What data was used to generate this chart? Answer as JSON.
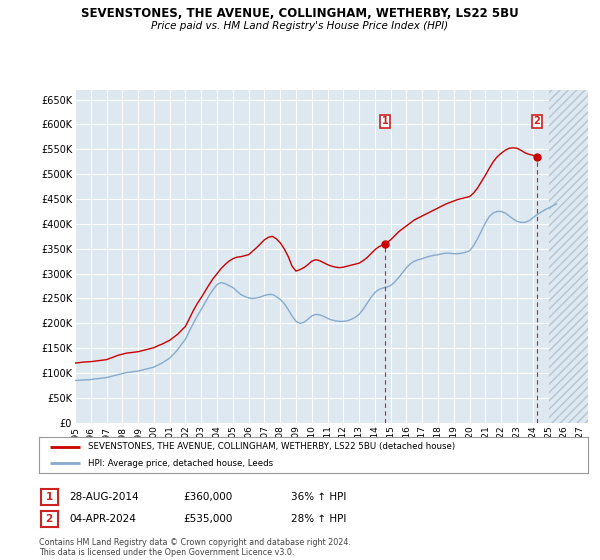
{
  "title": "SEVENSTONES, THE AVENUE, COLLINGHAM, WETHERBY, LS22 5BU",
  "subtitle": "Price paid vs. HM Land Registry's House Price Index (HPI)",
  "ylabel_ticks": [
    "£0",
    "£50K",
    "£100K",
    "£150K",
    "£200K",
    "£250K",
    "£300K",
    "£350K",
    "£400K",
    "£450K",
    "£500K",
    "£550K",
    "£600K",
    "£650K"
  ],
  "ytick_values": [
    0,
    50000,
    100000,
    150000,
    200000,
    250000,
    300000,
    350000,
    400000,
    450000,
    500000,
    550000,
    600000,
    650000
  ],
  "ylim": [
    0,
    670000
  ],
  "xlim_start": 1995.0,
  "xlim_end": 2027.5,
  "xtick_years": [
    1995,
    1996,
    1997,
    1998,
    1999,
    2000,
    2001,
    2002,
    2003,
    2004,
    2005,
    2006,
    2007,
    2008,
    2009,
    2010,
    2011,
    2012,
    2013,
    2014,
    2015,
    2016,
    2017,
    2018,
    2019,
    2020,
    2021,
    2022,
    2023,
    2024,
    2025,
    2026,
    2027
  ],
  "red_line_color": "#cc0000",
  "blue_line_color": "#88aacc",
  "background_color": "#ffffff",
  "plot_bg_color": "#dde8f0",
  "grid_color": "#ffffff",
  "hatch_color": "#c8d4e0",
  "marker_box_color": "#cc2222",
  "dashed_line_color": "#cc2222",
  "marker1_x": 2014.66,
  "marker1_y": 360000,
  "marker2_x": 2024.27,
  "marker2_y": 535000,
  "annotation1": [
    "1",
    "28-AUG-2014",
    "£360,000",
    "36% ↑ HPI"
  ],
  "annotation2": [
    "2",
    "04-APR-2024",
    "£535,000",
    "28% ↑ HPI"
  ],
  "legend_line1": "SEVENSTONES, THE AVENUE, COLLINGHAM, WETHERBY, LS22 5BU (detached house)",
  "legend_line2": "HPI: Average price, detached house, Leeds",
  "footnote": "Contains HM Land Registry data © Crown copyright and database right 2024.\nThis data is licensed under the Open Government Licence v3.0.",
  "hatch_start_x": 2025.0,
  "red_hpi_data": [
    [
      1995.0,
      120000
    ],
    [
      1995.25,
      121000
    ],
    [
      1995.5,
      122000
    ],
    [
      1995.75,
      122500
    ],
    [
      1996.0,
      123000
    ],
    [
      1996.25,
      124000
    ],
    [
      1996.5,
      125000
    ],
    [
      1996.75,
      126000
    ],
    [
      1997.0,
      127000
    ],
    [
      1997.25,
      130000
    ],
    [
      1997.5,
      133000
    ],
    [
      1997.75,
      136000
    ],
    [
      1998.0,
      138000
    ],
    [
      1998.25,
      140000
    ],
    [
      1998.5,
      141000
    ],
    [
      1998.75,
      142000
    ],
    [
      1999.0,
      143000
    ],
    [
      1999.25,
      145000
    ],
    [
      1999.5,
      147000
    ],
    [
      1999.75,
      149000
    ],
    [
      2000.0,
      151000
    ],
    [
      2000.25,
      155000
    ],
    [
      2000.5,
      158000
    ],
    [
      2000.75,
      162000
    ],
    [
      2001.0,
      166000
    ],
    [
      2001.25,
      172000
    ],
    [
      2001.5,
      178000
    ],
    [
      2001.75,
      186000
    ],
    [
      2002.0,
      194000
    ],
    [
      2002.25,
      210000
    ],
    [
      2002.5,
      226000
    ],
    [
      2002.75,
      240000
    ],
    [
      2003.0,
      252000
    ],
    [
      2003.25,
      265000
    ],
    [
      2003.5,
      278000
    ],
    [
      2003.75,
      290000
    ],
    [
      2004.0,
      300000
    ],
    [
      2004.25,
      310000
    ],
    [
      2004.5,
      318000
    ],
    [
      2004.75,
      325000
    ],
    [
      2005.0,
      330000
    ],
    [
      2005.25,
      333000
    ],
    [
      2005.5,
      334000
    ],
    [
      2005.75,
      336000
    ],
    [
      2006.0,
      338000
    ],
    [
      2006.25,
      345000
    ],
    [
      2006.5,
      352000
    ],
    [
      2006.75,
      360000
    ],
    [
      2007.0,
      368000
    ],
    [
      2007.25,
      373000
    ],
    [
      2007.5,
      375000
    ],
    [
      2007.75,
      370000
    ],
    [
      2008.0,
      362000
    ],
    [
      2008.25,
      350000
    ],
    [
      2008.5,
      335000
    ],
    [
      2008.75,
      315000
    ],
    [
      2009.0,
      305000
    ],
    [
      2009.25,
      308000
    ],
    [
      2009.5,
      312000
    ],
    [
      2009.75,
      318000
    ],
    [
      2010.0,
      325000
    ],
    [
      2010.25,
      328000
    ],
    [
      2010.5,
      326000
    ],
    [
      2010.75,
      322000
    ],
    [
      2011.0,
      318000
    ],
    [
      2011.25,
      315000
    ],
    [
      2011.5,
      313000
    ],
    [
      2011.75,
      312000
    ],
    [
      2012.0,
      313000
    ],
    [
      2012.25,
      315000
    ],
    [
      2012.5,
      317000
    ],
    [
      2012.75,
      319000
    ],
    [
      2013.0,
      321000
    ],
    [
      2013.25,
      326000
    ],
    [
      2013.5,
      332000
    ],
    [
      2013.75,
      340000
    ],
    [
      2014.0,
      348000
    ],
    [
      2014.25,
      354000
    ],
    [
      2014.5,
      358000
    ],
    [
      2014.66,
      360000
    ],
    [
      2014.75,
      362000
    ],
    [
      2015.0,
      368000
    ],
    [
      2015.25,
      376000
    ],
    [
      2015.5,
      384000
    ],
    [
      2015.75,
      390000
    ],
    [
      2016.0,
      396000
    ],
    [
      2016.25,
      402000
    ],
    [
      2016.5,
      408000
    ],
    [
      2016.75,
      412000
    ],
    [
      2017.0,
      416000
    ],
    [
      2017.25,
      420000
    ],
    [
      2017.5,
      424000
    ],
    [
      2017.75,
      428000
    ],
    [
      2018.0,
      432000
    ],
    [
      2018.25,
      436000
    ],
    [
      2018.5,
      440000
    ],
    [
      2018.75,
      443000
    ],
    [
      2019.0,
      446000
    ],
    [
      2019.25,
      449000
    ],
    [
      2019.5,
      451000
    ],
    [
      2019.75,
      453000
    ],
    [
      2020.0,
      455000
    ],
    [
      2020.25,
      462000
    ],
    [
      2020.5,
      472000
    ],
    [
      2020.75,
      485000
    ],
    [
      2021.0,
      498000
    ],
    [
      2021.25,
      512000
    ],
    [
      2021.5,
      525000
    ],
    [
      2021.75,
      535000
    ],
    [
      2022.0,
      542000
    ],
    [
      2022.25,
      548000
    ],
    [
      2022.5,
      552000
    ],
    [
      2022.75,
      553000
    ],
    [
      2023.0,
      552000
    ],
    [
      2023.25,
      548000
    ],
    [
      2023.5,
      543000
    ],
    [
      2023.75,
      540000
    ],
    [
      2024.0,
      538000
    ],
    [
      2024.27,
      535000
    ]
  ],
  "blue_hpi_data": [
    [
      1995.0,
      85000
    ],
    [
      1995.25,
      85500
    ],
    [
      1995.5,
      86000
    ],
    [
      1995.75,
      86500
    ],
    [
      1996.0,
      87000
    ],
    [
      1996.25,
      88000
    ],
    [
      1996.5,
      89000
    ],
    [
      1996.75,
      90000
    ],
    [
      1997.0,
      91000
    ],
    [
      1997.25,
      93000
    ],
    [
      1997.5,
      95000
    ],
    [
      1997.75,
      97000
    ],
    [
      1998.0,
      99000
    ],
    [
      1998.25,
      101000
    ],
    [
      1998.5,
      102000
    ],
    [
      1998.75,
      103000
    ],
    [
      1999.0,
      104000
    ],
    [
      1999.25,
      106000
    ],
    [
      1999.5,
      108000
    ],
    [
      1999.75,
      110000
    ],
    [
      2000.0,
      112000
    ],
    [
      2000.25,
      116000
    ],
    [
      2000.5,
      120000
    ],
    [
      2000.75,
      125000
    ],
    [
      2001.0,
      130000
    ],
    [
      2001.25,
      138000
    ],
    [
      2001.5,
      147000
    ],
    [
      2001.75,
      158000
    ],
    [
      2002.0,
      168000
    ],
    [
      2002.25,
      185000
    ],
    [
      2002.5,
      200000
    ],
    [
      2002.75,
      215000
    ],
    [
      2003.0,
      228000
    ],
    [
      2003.25,
      242000
    ],
    [
      2003.5,
      256000
    ],
    [
      2003.75,
      268000
    ],
    [
      2004.0,
      278000
    ],
    [
      2004.25,
      282000
    ],
    [
      2004.5,
      280000
    ],
    [
      2004.75,
      276000
    ],
    [
      2005.0,
      272000
    ],
    [
      2005.25,
      265000
    ],
    [
      2005.5,
      258000
    ],
    [
      2005.75,
      254000
    ],
    [
      2006.0,
      251000
    ],
    [
      2006.25,
      250000
    ],
    [
      2006.5,
      251000
    ],
    [
      2006.75,
      253000
    ],
    [
      2007.0,
      256000
    ],
    [
      2007.25,
      258000
    ],
    [
      2007.5,
      258000
    ],
    [
      2007.75,
      254000
    ],
    [
      2008.0,
      248000
    ],
    [
      2008.25,
      240000
    ],
    [
      2008.5,
      228000
    ],
    [
      2008.75,
      215000
    ],
    [
      2009.0,
      204000
    ],
    [
      2009.25,
      200000
    ],
    [
      2009.5,
      202000
    ],
    [
      2009.75,
      208000
    ],
    [
      2010.0,
      215000
    ],
    [
      2010.25,
      218000
    ],
    [
      2010.5,
      217000
    ],
    [
      2010.75,
      214000
    ],
    [
      2011.0,
      210000
    ],
    [
      2011.25,
      207000
    ],
    [
      2011.5,
      205000
    ],
    [
      2011.75,
      204000
    ],
    [
      2012.0,
      204000
    ],
    [
      2012.25,
      205000
    ],
    [
      2012.5,
      208000
    ],
    [
      2012.75,
      212000
    ],
    [
      2013.0,
      218000
    ],
    [
      2013.25,
      228000
    ],
    [
      2013.5,
      240000
    ],
    [
      2013.75,
      252000
    ],
    [
      2014.0,
      262000
    ],
    [
      2014.25,
      268000
    ],
    [
      2014.5,
      271000
    ],
    [
      2014.75,
      273000
    ],
    [
      2015.0,
      276000
    ],
    [
      2015.25,
      283000
    ],
    [
      2015.5,
      292000
    ],
    [
      2015.75,
      302000
    ],
    [
      2016.0,
      312000
    ],
    [
      2016.25,
      320000
    ],
    [
      2016.5,
      325000
    ],
    [
      2016.75,
      328000
    ],
    [
      2017.0,
      330000
    ],
    [
      2017.25,
      333000
    ],
    [
      2017.5,
      335000
    ],
    [
      2017.75,
      337000
    ],
    [
      2018.0,
      338000
    ],
    [
      2018.25,
      340000
    ],
    [
      2018.5,
      341000
    ],
    [
      2018.75,
      341000
    ],
    [
      2019.0,
      340000
    ],
    [
      2019.25,
      340000
    ],
    [
      2019.5,
      341000
    ],
    [
      2019.75,
      343000
    ],
    [
      2020.0,
      346000
    ],
    [
      2020.25,
      356000
    ],
    [
      2020.5,
      370000
    ],
    [
      2020.75,
      386000
    ],
    [
      2021.0,
      402000
    ],
    [
      2021.25,
      415000
    ],
    [
      2021.5,
      422000
    ],
    [
      2021.75,
      425000
    ],
    [
      2022.0,
      425000
    ],
    [
      2022.25,
      422000
    ],
    [
      2022.5,
      416000
    ],
    [
      2022.75,
      410000
    ],
    [
      2023.0,
      405000
    ],
    [
      2023.25,
      403000
    ],
    [
      2023.5,
      403000
    ],
    [
      2023.75,
      406000
    ],
    [
      2024.0,
      412000
    ],
    [
      2024.25,
      418000
    ],
    [
      2024.5,
      423000
    ],
    [
      2024.75,
      428000
    ],
    [
      2025.0,
      432000
    ],
    [
      2025.25,
      436000
    ],
    [
      2025.5,
      440000
    ]
  ]
}
